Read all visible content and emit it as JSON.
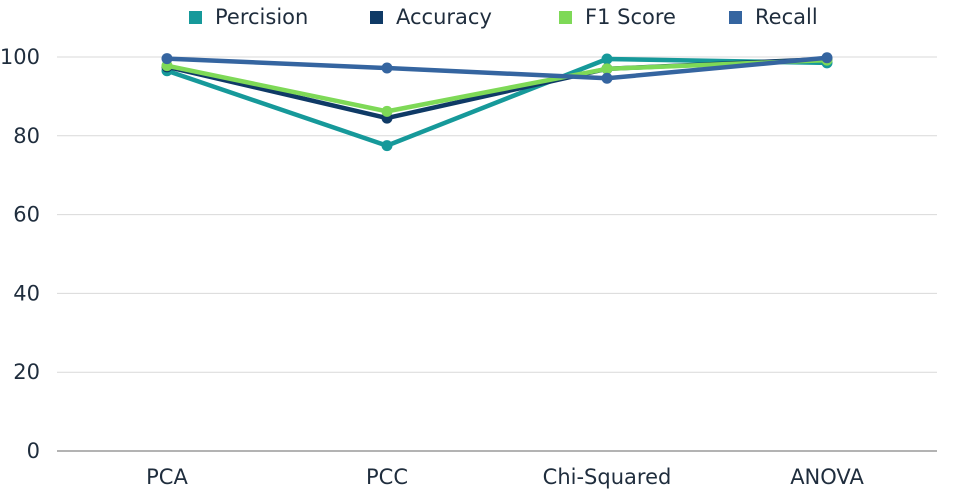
{
  "chart_data": {
    "type": "line",
    "categories": [
      "PCA",
      "PCC",
      "Chi-Squared",
      "ANOVA"
    ],
    "ylim": [
      0,
      100
    ],
    "yticks": [
      "0",
      "20",
      "40",
      "60",
      "80",
      "100"
    ],
    "grid": true,
    "legend_position": "top",
    "series": [
      {
        "name": "Percision",
        "color": "#16999a",
        "values": [
          96.5,
          77.5,
          99.5,
          98.5
        ]
      },
      {
        "name": "Accuracy",
        "color": "#0f3a66",
        "values": [
          97.5,
          84.5,
          97.0,
          99.5
        ]
      },
      {
        "name": "F1 Score",
        "color": "#7ed957",
        "values": [
          97.8,
          86.2,
          97.0,
          99.2
        ]
      },
      {
        "name": "Recall",
        "color": "#3565a0",
        "values": [
          99.6,
          97.2,
          94.6,
          99.8
        ]
      }
    ]
  }
}
